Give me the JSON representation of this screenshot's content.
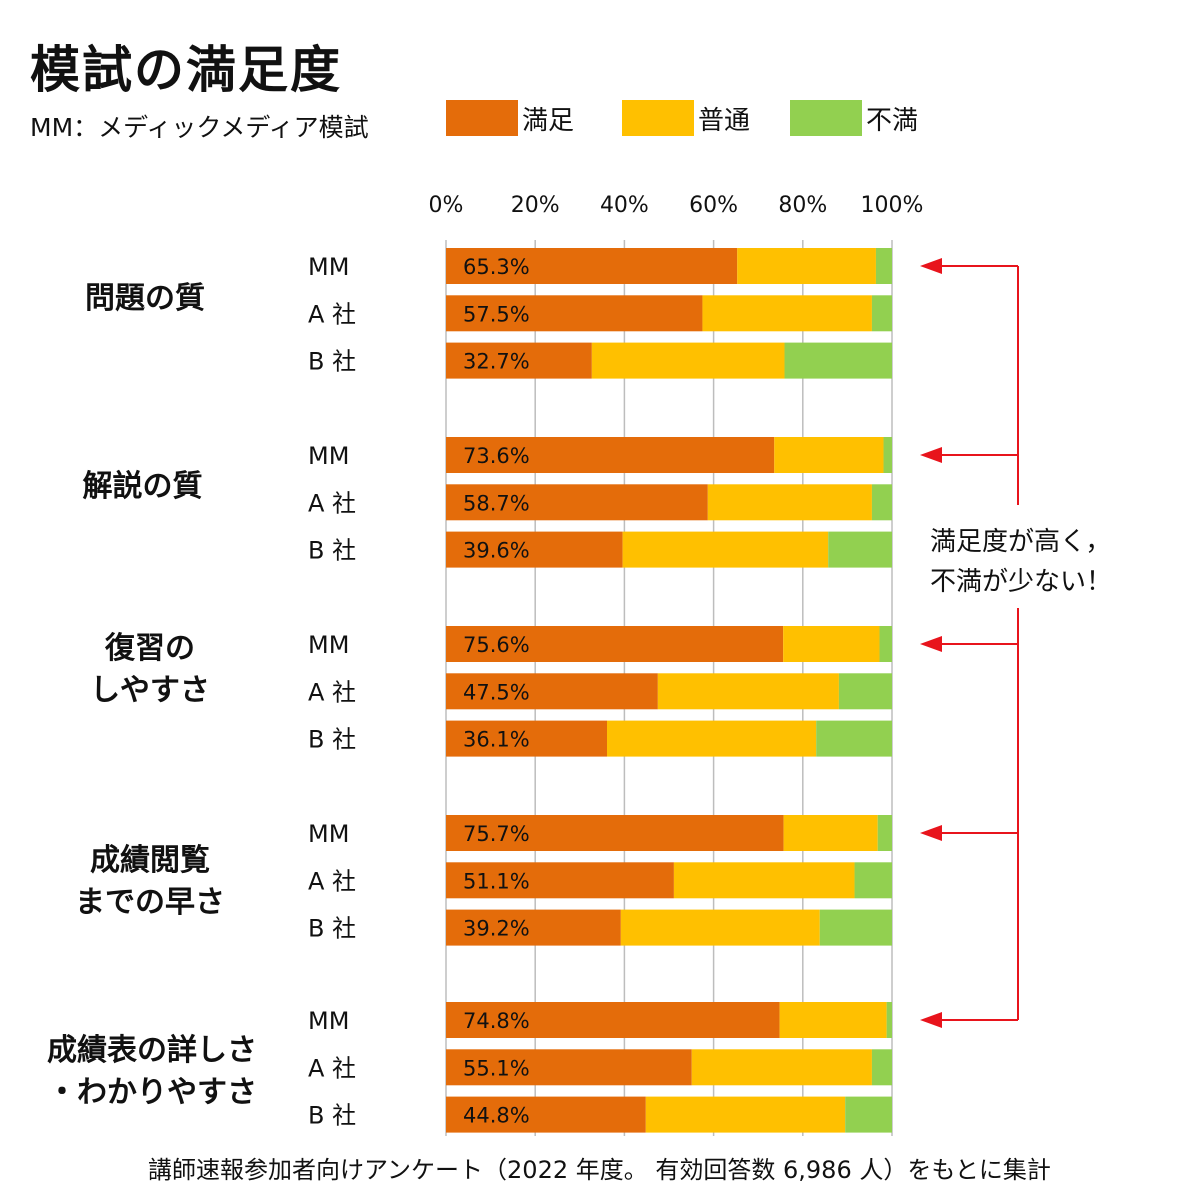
{
  "header": {
    "title": "模試の満足度",
    "subtitle": "MM：メディックメディア模試"
  },
  "legend": [
    {
      "label": "満足",
      "color": "#e46c0a"
    },
    {
      "label": "普通",
      "color": "#ffc000"
    },
    {
      "label": "不満",
      "color": "#92d050"
    }
  ],
  "annotation": {
    "line1": "満足度が高く，",
    "line2": "不満が少ない！",
    "arrow_color": "#e8141c"
  },
  "footer": {
    "note": "講師速報参加者向けアンケート（2022 年度。 有効回答数 6,986 人）をもとに集計"
  },
  "chart_data": {
    "type": "bar",
    "orientation": "horizontal",
    "stacked": "percent",
    "xlim": [
      0,
      100
    ],
    "ticks": [
      "0%",
      "20%",
      "40%",
      "60%",
      "80%",
      "100%"
    ],
    "tick_values": [
      0,
      20,
      40,
      60,
      80,
      100
    ],
    "grid": true,
    "legend_position": "top",
    "series_names": [
      "満足",
      "普通",
      "不満"
    ],
    "groups": [
      {
        "label_lines": [
          "問題の質"
        ],
        "rows": [
          {
            "name": "MM",
            "values": [
              65.3,
              31.1,
              3.6
            ],
            "label": "65.3%"
          },
          {
            "name": "A 社",
            "values": [
              57.5,
              38.0,
              4.5
            ],
            "label": "57.5%"
          },
          {
            "name": "B 社",
            "values": [
              32.7,
              43.2,
              24.1
            ],
            "label": "32.7%"
          }
        ]
      },
      {
        "label_lines": [
          "解説の質"
        ],
        "rows": [
          {
            "name": "MM",
            "values": [
              73.6,
              24.5,
              1.9
            ],
            "label": "73.6%"
          },
          {
            "name": "A 社",
            "values": [
              58.7,
              36.8,
              4.5
            ],
            "label": "58.7%"
          },
          {
            "name": "B 社",
            "values": [
              39.6,
              46.1,
              14.3
            ],
            "label": "39.6%"
          }
        ]
      },
      {
        "label_lines": [
          "復習の",
          "しやすさ"
        ],
        "rows": [
          {
            "name": "MM",
            "values": [
              75.6,
              21.6,
              2.8
            ],
            "label": "75.6%"
          },
          {
            "name": "A 社",
            "values": [
              47.5,
              40.6,
              11.9
            ],
            "label": "47.5%"
          },
          {
            "name": "B 社",
            "values": [
              36.1,
              46.9,
              17.0
            ],
            "label": "36.1%"
          }
        ]
      },
      {
        "label_lines": [
          "成績閲覧",
          "までの早さ"
        ],
        "rows": [
          {
            "name": "MM",
            "values": [
              75.7,
              21.1,
              3.2
            ],
            "label": "75.7%"
          },
          {
            "name": "A 社",
            "values": [
              51.1,
              40.5,
              8.4
            ],
            "label": "51.1%"
          },
          {
            "name": "B 社",
            "values": [
              39.2,
              44.6,
              16.2
            ],
            "label": "39.2%"
          }
        ]
      },
      {
        "label_lines": [
          "成績表の詳しさ",
          "・わかりやすさ"
        ],
        "rows": [
          {
            "name": "MM",
            "values": [
              74.8,
              24.0,
              1.2
            ],
            "label": "74.8%"
          },
          {
            "name": "A 社",
            "values": [
              55.1,
              40.4,
              4.5
            ],
            "label": "55.1%"
          },
          {
            "name": "B 社",
            "values": [
              44.8,
              44.7,
              10.5
            ],
            "label": "44.8%"
          }
        ]
      }
    ]
  }
}
